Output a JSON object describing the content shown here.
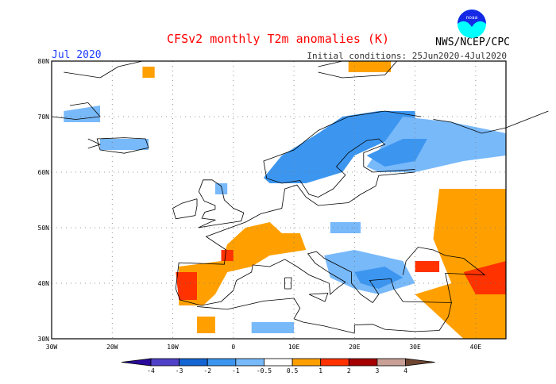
{
  "header": {
    "title": "CFSv2 monthly T2m anomalies (K)",
    "month": "Jul 2020",
    "initial_conditions": "Initial conditions: 25Jun2020-4Jul2020",
    "agency": "NWS/NCEP/CPC",
    "logo_text": "NOAA"
  },
  "map": {
    "region": "Europe",
    "lon_range": [
      -30,
      45
    ],
    "lat_range": [
      30,
      80
    ],
    "lon_ticks": [
      "30W",
      "20W",
      "10W",
      "0",
      "10E",
      "20E",
      "30E",
      "40E"
    ],
    "lat_ticks": [
      "30N",
      "40N",
      "50N",
      "60N",
      "70N",
      "80N"
    ],
    "grid": "dotted"
  },
  "colorbar": {
    "labels": [
      "-4",
      "-3",
      "-2",
      "-1",
      "-0.5",
      "0.5",
      "1",
      "2",
      "3",
      "4"
    ],
    "colors": [
      "#2a0a9c",
      "#5040c8",
      "#1464d2",
      "#3c96f0",
      "#78b9fa",
      "#ffffff",
      "#ffa000",
      "#ff3200",
      "#a50000",
      "#c8a096",
      "#6e4632"
    ]
  }
}
